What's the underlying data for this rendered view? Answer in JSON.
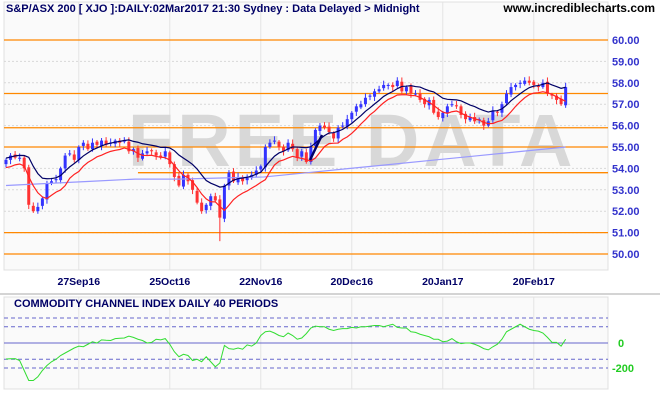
{
  "header": {
    "title": "S&P/ASX 200 [ XJO ]:DAILY:02Mar2017 21:30 Sydney : Data Delayed > Midnight",
    "site": "www.incrediblecharts.com",
    "watermark": "FREE DATA"
  },
  "colors": {
    "up_candle": "#3333ff",
    "down_candle": "#ff3333",
    "fast_line": "#ff2222",
    "slow_line": "#000066",
    "long_ma": "#9999ff",
    "support_resistance": "#ff8800",
    "cci_line": "#33dd33",
    "cci_levels": "#6666cc"
  },
  "chart_data": [
    {
      "type": "candlestick",
      "title": "S&P/ASX 200 [ XJO ]:DAILY:02Mar2017 21:30 Sydney : Data Delayed > Midnight",
      "ylim": [
        49.5,
        61
      ],
      "y_ticks": [
        "50.00",
        "51.00",
        "52.00",
        "53.00",
        "54.00",
        "55.00",
        "56.00",
        "57.00",
        "58.00",
        "59.00",
        "60.00"
      ],
      "y_tick_values": [
        50,
        51,
        52,
        53,
        54,
        55,
        56,
        57,
        58,
        59,
        60
      ],
      "x_ticks": [
        {
          "label": "27Sep16",
          "index": 16
        },
        {
          "label": "25Oct16",
          "index": 36
        },
        {
          "label": "22Nov16",
          "index": 56
        },
        {
          "label": "20Dec16",
          "index": 76
        },
        {
          "label": "20Jan17",
          "index": 96
        },
        {
          "label": "20Feb17",
          "index": 116
        }
      ],
      "grid": true,
      "close": [
        54.4,
        54.6,
        54.5,
        54.5,
        54.0,
        52.3,
        52.0,
        52.2,
        52.6,
        53.3,
        53.4,
        53.5,
        54.0,
        54.6,
        54.7,
        54.4,
        55.0,
        55.2,
        54.9,
        55.2,
        55.1,
        55.3,
        55.1,
        55.2,
        55.3,
        55.2,
        55.3,
        54.8,
        54.9,
        54.5,
        54.7,
        54.8,
        54.8,
        54.6,
        54.5,
        54.8,
        54.2,
        53.6,
        53.2,
        53.7,
        53.4,
        53.0,
        52.4,
        52.0,
        52.3,
        52.7,
        52.5,
        51.7,
        53.2,
        53.8,
        53.4,
        53.6,
        53.4,
        53.6,
        53.7,
        53.9,
        54.1,
        55.0,
        55.2,
        55.3,
        55.0,
        54.8,
        55.2,
        54.9,
        54.5,
        54.8,
        54.3,
        55.0,
        55.8,
        56.0,
        55.9,
        55.7,
        55.4,
        55.9,
        56.0,
        56.3,
        56.6,
        56.9,
        57.0,
        57.3,
        57.4,
        57.6,
        57.7,
        57.9,
        57.9,
        57.8,
        58.1,
        57.6,
        57.8,
        57.5,
        57.5,
        57.2,
        57.0,
        57.2,
        56.6,
        56.4,
        56.6,
        56.9,
        57.0,
        56.9,
        56.5,
        56.3,
        56.4,
        56.2,
        56.3,
        56.0,
        56.2,
        56.7,
        56.6,
        57.0,
        57.5,
        57.8,
        57.9,
        58.0,
        58.1,
        58.0,
        57.9,
        57.8,
        58.0,
        57.5,
        57.4,
        57.2,
        57.0,
        57.8
      ],
      "long_ma": [
        53.2,
        53.3,
        53.4,
        53.5,
        53.5,
        53.55,
        53.6,
        53.8,
        54.0,
        54.2,
        54.4,
        54.6,
        54.8,
        55.0
      ],
      "horizontal_lines": [
        60.0,
        57.5,
        55.9,
        55.0,
        51.0,
        50.0
      ],
      "partial_line": {
        "value": 53.8,
        "from_index": 29
      }
    },
    {
      "type": "line",
      "title": "COMMODITY CHANNEL INDEX DAILY 40 PERIODS",
      "ylim": [
        -400,
        300
      ],
      "y_ticks": [
        "0",
        "-200"
      ],
      "y_tick_values": [
        0,
        -200
      ],
      "levels": [
        200,
        130,
        -130,
        -200
      ],
      "values": [
        -128,
        -126,
        -125,
        -140,
        -220,
        -300,
        -300,
        -270,
        -220,
        -180,
        -150,
        -130,
        -100,
        -80,
        -60,
        -40,
        -25,
        -30,
        -10,
        10,
        0,
        25,
        22,
        20,
        35,
        38,
        40,
        55,
        45,
        30,
        20,
        0,
        5,
        30,
        25,
        35,
        -10,
        -70,
        -110,
        -90,
        -100,
        -140,
        -130,
        -150,
        -110,
        -150,
        -190,
        -160,
        -20,
        -45,
        -50,
        -40,
        -50,
        -15,
        -25,
        0,
        60,
        90,
        95,
        80,
        60,
        50,
        80,
        60,
        30,
        40,
        75,
        120,
        135,
        130,
        130,
        110,
        100,
        110,
        115,
        115,
        125,
        120,
        130,
        130,
        135,
        140,
        140,
        130,
        140,
        150,
        125,
        120,
        120,
        90,
        85,
        70,
        60,
        50,
        30,
        30,
        10,
        15,
        35,
        10,
        -5,
        0,
        0,
        -10,
        -25,
        -45,
        -55,
        -30,
        -10,
        30,
        90,
        110,
        130,
        150,
        130,
        110,
        100,
        95,
        80,
        45,
        5,
        5,
        -25,
        30
      ]
    }
  ]
}
